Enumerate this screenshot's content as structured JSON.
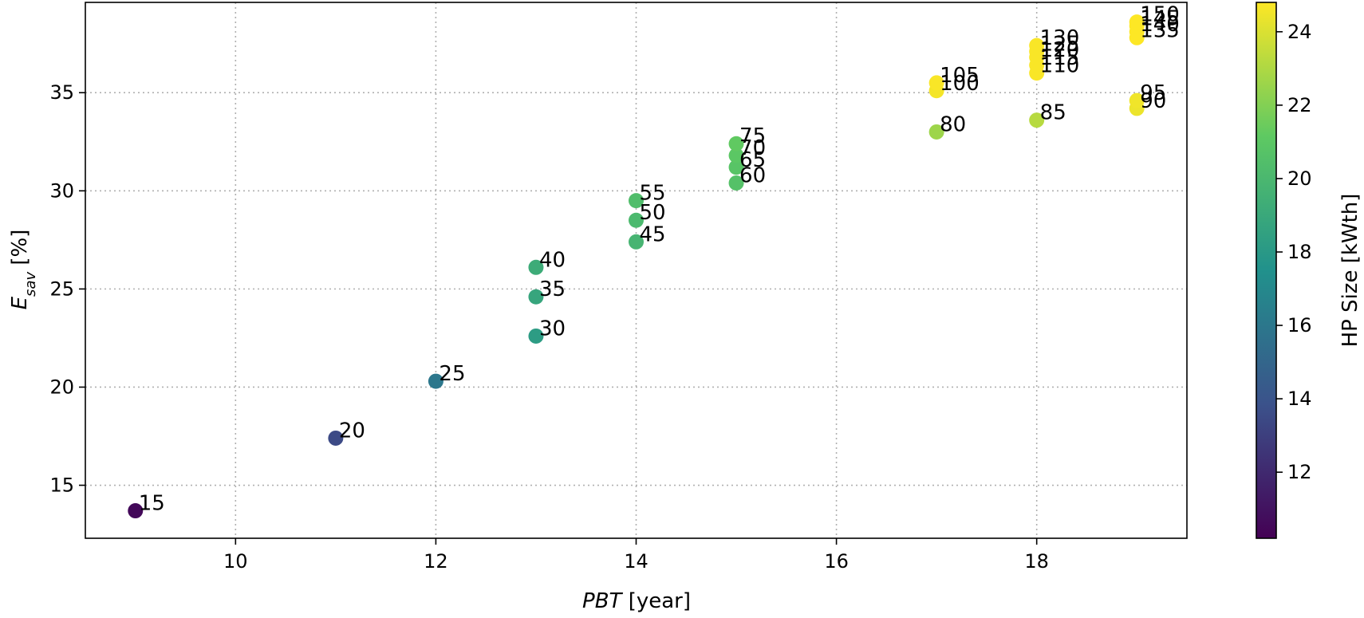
{
  "chart_data": {
    "type": "scatter",
    "title": "",
    "xlabel": "[year]",
    "xlabel_symbol": "PBT",
    "ylabel": "[%]",
    "ylabel_symbol": "E",
    "ylabel_subscript": "sav",
    "xlim": [
      8.5,
      19.5
    ],
    "ylim": [
      12.3,
      39.6
    ],
    "xticks": [
      10,
      12,
      14,
      16,
      18
    ],
    "yticks": [
      15,
      20,
      25,
      30,
      35
    ],
    "grid": true,
    "colorbar": {
      "label": "HP Size [kWth]",
      "range": [
        10.2,
        24.8
      ],
      "ticks": [
        12,
        14,
        16,
        18,
        20,
        22,
        24
      ],
      "colormap": "viridis",
      "colormap_stops": [
        "#440154",
        "#3b528b",
        "#21918c",
        "#5ec962",
        "#fde725"
      ]
    },
    "points": [
      {
        "x": 9,
        "y": 13.7,
        "label": "15",
        "c": 10.5
      },
      {
        "x": 11,
        "y": 17.4,
        "label": "20",
        "c": 13.5
      },
      {
        "x": 12,
        "y": 20.3,
        "label": "25",
        "c": 16.0
      },
      {
        "x": 13,
        "y": 22.6,
        "label": "30",
        "c": 18.2
      },
      {
        "x": 13,
        "y": 24.6,
        "label": "35",
        "c": 18.8
      },
      {
        "x": 13,
        "y": 26.1,
        "label": "40",
        "c": 19.2
      },
      {
        "x": 14,
        "y": 27.4,
        "label": "45",
        "c": 19.8
      },
      {
        "x": 14,
        "y": 28.5,
        "label": "50",
        "c": 20.1
      },
      {
        "x": 14,
        "y": 29.5,
        "label": "55",
        "c": 20.4
      },
      {
        "x": 15,
        "y": 30.4,
        "label": "60",
        "c": 20.6
      },
      {
        "x": 15,
        "y": 31.2,
        "label": "65",
        "c": 20.8
      },
      {
        "x": 15,
        "y": 31.8,
        "label": "70",
        "c": 21.0
      },
      {
        "x": 15,
        "y": 32.4,
        "label": "75",
        "c": 21.2
      },
      {
        "x": 17,
        "y": 33.0,
        "label": "80",
        "c": 22.6
      },
      {
        "x": 18,
        "y": 33.6,
        "label": "85",
        "c": 23.2
      },
      {
        "x": 19,
        "y": 34.2,
        "label": "90",
        "c": 24.4
      },
      {
        "x": 19,
        "y": 34.6,
        "label": "95",
        "c": 24.5
      },
      {
        "x": 17,
        "y": 35.1,
        "label": "100",
        "c": 24.6
      },
      {
        "x": 17,
        "y": 35.5,
        "label": "105",
        "c": 24.7
      },
      {
        "x": 18,
        "y": 36.0,
        "label": "110",
        "c": 24.7
      },
      {
        "x": 18,
        "y": 36.4,
        "label": "115",
        "c": 24.7
      },
      {
        "x": 18,
        "y": 36.8,
        "label": "120",
        "c": 24.7
      },
      {
        "x": 18,
        "y": 37.1,
        "label": "125",
        "c": 24.7
      },
      {
        "x": 18,
        "y": 37.4,
        "label": "130",
        "c": 24.7
      },
      {
        "x": 19,
        "y": 37.8,
        "label": "135",
        "c": 24.8
      },
      {
        "x": 19,
        "y": 38.1,
        "label": "140",
        "c": 24.8
      },
      {
        "x": 19,
        "y": 38.4,
        "label": "145",
        "c": 24.8
      },
      {
        "x": 19,
        "y": 38.6,
        "label": "150",
        "c": 24.8
      }
    ]
  }
}
